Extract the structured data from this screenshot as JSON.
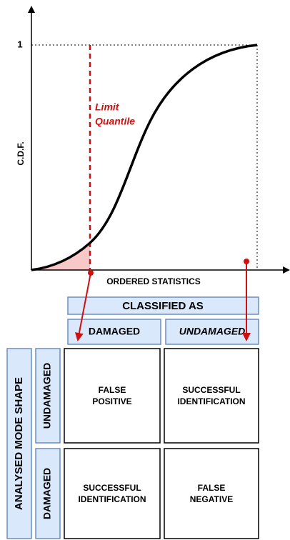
{
  "plot": {
    "y_label": "C.D.F.",
    "y_max_label": "1",
    "x_label": "ORDERED STATISTICS",
    "annotation": [
      "Limit",
      "Quantile"
    ]
  },
  "table": {
    "header": "CLASSIFIED AS",
    "columns": [
      "DAMAGED",
      "UNDAMAGED"
    ],
    "row_header": "ANALYSED MODE SHAPE",
    "rows": [
      "UNDAMAGED",
      "DAMAGED"
    ],
    "cells": [
      [
        [
          "FALSE",
          "POSITIVE"
        ],
        [
          "SUCCESSFUL",
          "IDENTIFICATION"
        ]
      ],
      [
        [
          "SUCCESSFUL",
          "IDENTIFICATION"
        ],
        [
          "FALSE",
          "NEGATIVE"
        ]
      ]
    ]
  }
}
